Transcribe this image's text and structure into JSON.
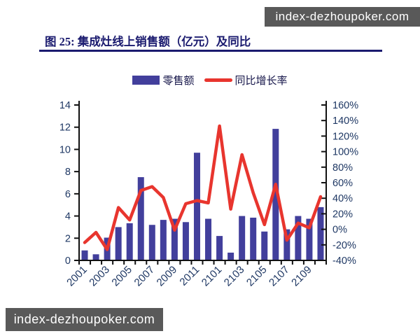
{
  "watermarks": {
    "top_right": "index-dezhoupoker.com",
    "bottom_left": "index-dezhoupoker.com"
  },
  "header": {
    "title": "图 25: 集成灶线上销售额（亿元）及同比"
  },
  "legend": {
    "bar_label": "零售额",
    "line_label": "同比增长率"
  },
  "colors": {
    "bar": "#423f9c",
    "line": "#e8352e",
    "axis_line": "#111111",
    "axis_text": "#1f3864",
    "title": "#1b1b6f",
    "watermark_bg": "#595959",
    "watermark_text": "#ffffff"
  },
  "chart_data": {
    "type": "bar",
    "subtype": "bar-line-combo",
    "categories": [
      "2001",
      "2002",
      "2003",
      "2004",
      "2005",
      "2006",
      "2007",
      "2008",
      "2009",
      "2010",
      "2011",
      "2012",
      "2101",
      "2102",
      "2103",
      "2104",
      "2105",
      "2106",
      "2107",
      "2108",
      "2109",
      "2110"
    ],
    "x_tick_labels_shown": [
      "2001",
      "2003",
      "2005",
      "2007",
      "2009",
      "2011",
      "2101",
      "2103",
      "2105",
      "2107",
      "2109"
    ],
    "series": [
      {
        "name": "零售额",
        "type": "bar",
        "axis": "left",
        "unit": "亿元",
        "values": [
          0.9,
          0.55,
          2.05,
          3.0,
          3.35,
          7.5,
          3.2,
          3.65,
          3.75,
          3.45,
          9.7,
          3.75,
          2.2,
          0.7,
          4.0,
          3.85,
          2.6,
          11.85,
          2.8,
          4.0,
          3.75,
          4.8
        ]
      },
      {
        "name": "同比增长率",
        "type": "line",
        "axis": "right",
        "unit": "%",
        "values": [
          -17,
          -4,
          -26,
          28,
          12,
          50,
          55,
          41,
          -1,
          33,
          37,
          34,
          133,
          26,
          96,
          47,
          6,
          58,
          -14,
          8,
          2,
          42
        ]
      }
    ],
    "left_axis": {
      "min": 0,
      "max": 14,
      "step": 2,
      "tick_labels": [
        "0",
        "2",
        "4",
        "6",
        "8",
        "10",
        "12",
        "14"
      ]
    },
    "right_axis": {
      "min": -40,
      "max": 160,
      "step": 20,
      "tick_labels": [
        "-40%",
        "-20%",
        "0%",
        "20%",
        "40%",
        "60%",
        "80%",
        "100%",
        "120%",
        "140%",
        "160%"
      ]
    },
    "grid": false,
    "legend_position": "top-center",
    "title": "集成灶线上销售额（亿元）及同比"
  }
}
